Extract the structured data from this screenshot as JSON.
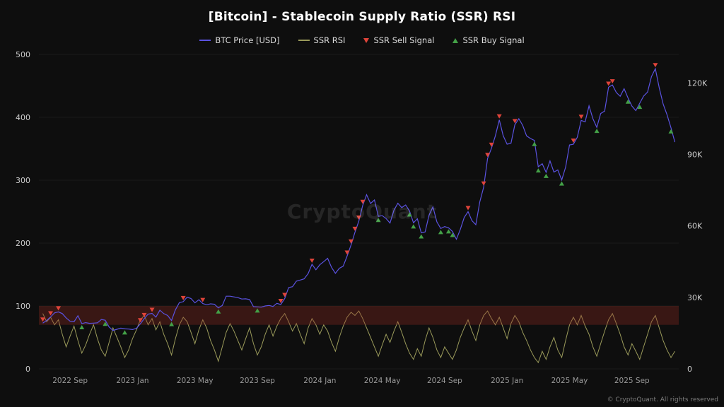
{
  "title": "[Bitcoin] - Stablecoin Supply Ratio (SSR) RSI",
  "watermark": "CryptoQuant",
  "footer": "© CryptoQuant. All rights reserved",
  "legend": [
    {
      "label": "BTC Price [USD]",
      "type": "line",
      "color": "#5a52e0"
    },
    {
      "label": "SSR RSI",
      "type": "line",
      "color": "#9a9a5a"
    },
    {
      "label": "SSR Sell Signal",
      "type": "triangle-down",
      "color": "#e0443a"
    },
    {
      "label": "SSR Buy Signal",
      "type": "triangle-up",
      "color": "#43a047"
    }
  ],
  "chart_data": {
    "type": "line",
    "title": "[Bitcoin] - Stablecoin Supply Ratio (SSR) RSI",
    "t_range": [
      0,
      41
    ],
    "x_ticks": [
      {
        "t": 2,
        "label": "2022 Sep"
      },
      {
        "t": 6,
        "label": "2023 Jan"
      },
      {
        "t": 10,
        "label": "2023 May"
      },
      {
        "t": 14,
        "label": "2023 Sep"
      },
      {
        "t": 18,
        "label": "2024 Jan"
      },
      {
        "t": 22,
        "label": "2024 May"
      },
      {
        "t": 26,
        "label": "2024 Sep"
      },
      {
        "t": 30,
        "label": "2025 Jan"
      },
      {
        "t": 34,
        "label": "2025 May"
      },
      {
        "t": 38,
        "label": "2025 Sep"
      }
    ],
    "left_axis": {
      "min": 0,
      "max": 500,
      "ticks": [
        0,
        100,
        200,
        300,
        400,
        500
      ]
    },
    "right_axis": {
      "min": 0,
      "max": 132,
      "unit": "K USD",
      "ticks": [
        {
          "v": 0,
          "label": "0"
        },
        {
          "v": 30,
          "label": "30K"
        },
        {
          "v": 60,
          "label": "60K"
        },
        {
          "v": 90,
          "label": "90K"
        },
        {
          "v": 120,
          "label": "120K"
        }
      ]
    },
    "overbought_band": {
      "from": 70,
      "to": 100,
      "color": "rgba(150,45,35,0.32)"
    },
    "signals": {
      "sell_rsi_threshold": 78,
      "buy_rsi_threshold": 25,
      "sell_color": "#e0443a",
      "buy_color": "#43a047"
    },
    "series": [
      {
        "name": "BTC Price [USD]",
        "axis": "right",
        "color": "#5a52e0",
        "t0": 0.25,
        "dt": 0.25,
        "values": [
          19.2,
          20.3,
          21.8,
          23.5,
          23.9,
          23.2,
          21.4,
          20.0,
          19.8,
          22.3,
          19.0,
          19.4,
          19.1,
          19.2,
          19.3,
          20.7,
          20.4,
          17.6,
          16.1,
          16.6,
          17.1,
          16.8,
          16.7,
          16.5,
          17.0,
          18.9,
          21.1,
          23.0,
          23.3,
          21.7,
          24.6,
          23.2,
          22.4,
          20.3,
          24.8,
          27.8,
          28.2,
          30.1,
          29.5,
          27.7,
          29.0,
          27.4,
          26.9,
          27.3,
          27.1,
          25.6,
          26.6,
          30.5,
          30.5,
          30.2,
          29.9,
          29.3,
          29.4,
          29.1,
          26.1,
          26.0,
          25.9,
          26.4,
          26.6,
          26.2,
          27.5,
          27.0,
          29.5,
          34.1,
          34.5,
          36.8,
          37.3,
          37.8,
          40.0,
          43.9,
          41.6,
          43.7,
          45.0,
          46.4,
          42.6,
          40.1,
          42.2,
          43.1,
          47.3,
          52.0,
          57.3,
          62.0,
          68.6,
          73.1,
          69.4,
          70.9,
          64.0,
          64.3,
          63.1,
          61.2,
          66.6,
          69.5,
          67.7,
          68.8,
          66.3,
          61.3,
          63.0,
          57.1,
          57.5,
          64.5,
          68.0,
          61.7,
          58.9,
          59.7,
          59.2,
          57.7,
          54.4,
          58.5,
          63.5,
          66.0,
          62.2,
          60.5,
          70.1,
          76.3,
          88.3,
          92.6,
          97.8,
          104.5,
          97.9,
          94.3,
          94.7,
          102.5,
          105.0,
          102.2,
          97.8,
          96.7,
          95.9,
          84.8,
          86.1,
          82.5,
          87.3,
          82.6,
          83.5,
          79.3,
          84.7,
          94.0,
          94.3,
          97.2,
          104.3,
          103.7,
          110.4,
          105.0,
          101.4,
          107.2,
          108.2,
          118.2,
          119.2,
          116.0,
          114.4,
          117.6,
          113.7,
          110.3,
          108.4,
          111.5,
          114.5,
          116.2,
          122.7,
          126.0,
          118.0,
          111.2,
          106.7,
          101.2,
          95.2
        ]
      },
      {
        "name": "SSR RSI",
        "axis": "left",
        "color": "#9a9a5a",
        "t0": 0.25,
        "dt": 0.25,
        "values": [
          88,
          75,
          82,
          70,
          78,
          55,
          35,
          52,
          68,
          45,
          25,
          38,
          55,
          70,
          48,
          30,
          20,
          42,
          65,
          50,
          35,
          18,
          30,
          48,
          62,
          78,
          85,
          70,
          80,
          62,
          75,
          55,
          40,
          22,
          48,
          70,
          82,
          75,
          58,
          40,
          62,
          78,
          65,
          45,
          30,
          12,
          35,
          58,
          72,
          60,
          45,
          30,
          48,
          65,
          40,
          22,
          35,
          55,
          70,
          52,
          68,
          80,
          88,
          75,
          60,
          72,
          55,
          40,
          65,
          80,
          70,
          55,
          70,
          60,
          42,
          28,
          50,
          68,
          82,
          90,
          85,
          92,
          80,
          65,
          50,
          35,
          20,
          38,
          55,
          42,
          60,
          75,
          58,
          40,
          25,
          15,
          32,
          20,
          45,
          65,
          50,
          30,
          18,
          35,
          25,
          15,
          30,
          50,
          65,
          78,
          60,
          45,
          70,
          85,
          92,
          80,
          70,
          82,
          65,
          48,
          72,
          85,
          75,
          58,
          45,
          30,
          18,
          10,
          28,
          15,
          35,
          50,
          30,
          18,
          45,
          70,
          82,
          70,
          85,
          68,
          55,
          35,
          20,
          40,
          60,
          78,
          88,
          72,
          55,
          35,
          22,
          40,
          28,
          15,
          35,
          55,
          75,
          85,
          65,
          45,
          30,
          18,
          28
        ]
      }
    ]
  }
}
